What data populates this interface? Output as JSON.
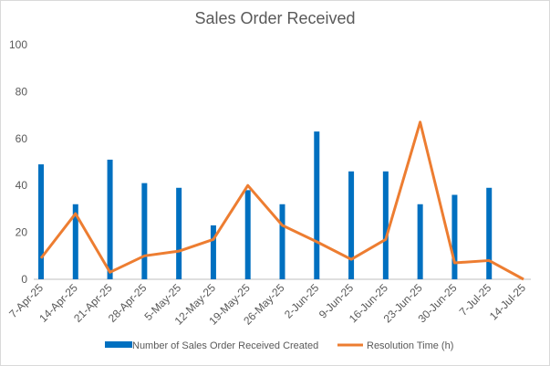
{
  "chart_data": {
    "type": "bar",
    "title": "Sales Order Received",
    "xlabel": "",
    "ylabel": "",
    "ylim": [
      0,
      100
    ],
    "yticks": [
      0,
      20,
      40,
      60,
      80,
      100
    ],
    "grid": false,
    "legend": "bottom",
    "categories": [
      "7-Apr-25",
      "14-Apr-25",
      "21-Apr-25",
      "28-Apr-25",
      "5-May-25",
      "12-May-25",
      "19-May-25",
      "26-May-25",
      "2-Jun-25",
      "9-Jun-25",
      "16-Jun-25",
      "23-Jun-25",
      "30-Jun-25",
      "7-Jul-25",
      "14-Jul-25"
    ],
    "series": [
      {
        "name": "Number of Sales Order Received Created",
        "type": "bar",
        "color": "#0070c0",
        "values": [
          49,
          32,
          51,
          41,
          39,
          23,
          38,
          32,
          63,
          46,
          46,
          32,
          36,
          39,
          0
        ]
      },
      {
        "name": "Resolution Time (h)",
        "type": "line",
        "color": "#ed7d31",
        "values": [
          9,
          28,
          3,
          10,
          12,
          17,
          40,
          23,
          16,
          8.5,
          17,
          67,
          7,
          8,
          0
        ]
      }
    ]
  }
}
